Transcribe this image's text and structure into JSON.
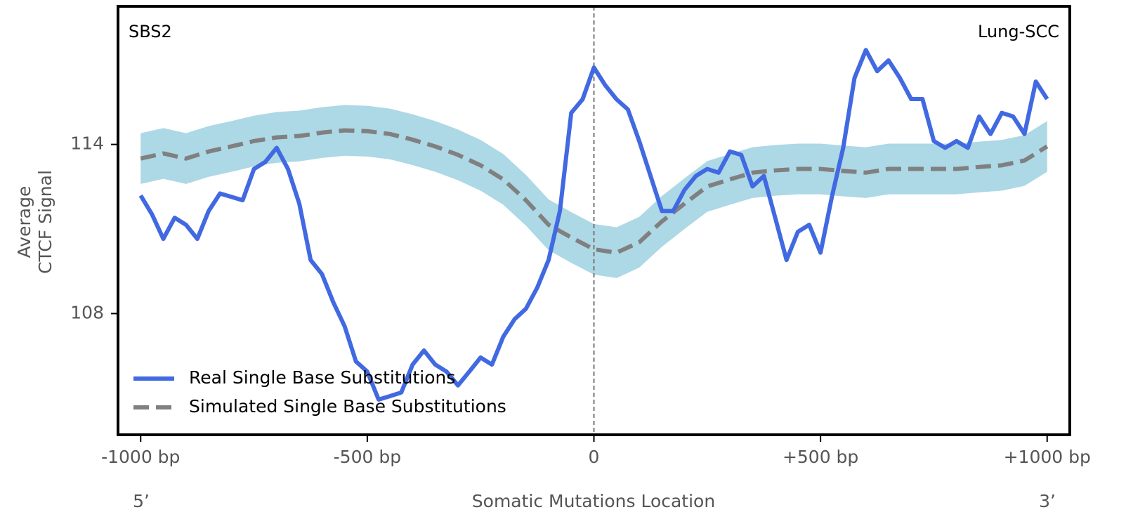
{
  "chart_data": {
    "type": "line",
    "annotations": [
      "SBS2",
      "Lung-SCC"
    ],
    "xlabel": "Somatic Mutations Location",
    "x_end_labels": [
      "5’",
      "3’"
    ],
    "ylabel": [
      "Average",
      "CTCF Signal"
    ],
    "xlim": [
      -1050,
      1050
    ],
    "ylim": [
      103.7,
      118.9
    ],
    "xticks": [
      {
        "value": -1000,
        "label": "-1000 bp"
      },
      {
        "value": -500,
        "label": "-500 bp"
      },
      0,
      {
        "value": 500,
        "label": "+500 bp"
      },
      {
        "value": 1000,
        "label": "+1000 bp"
      }
    ],
    "yticks": [
      108,
      114
    ],
    "vline": 0,
    "legend": "lower left",
    "band": {
      "color": "#add8e6",
      "x": [
        -1000,
        -950,
        -900,
        -850,
        -800,
        -750,
        -700,
        -650,
        -600,
        -550,
        -500,
        -450,
        -400,
        -350,
        -300,
        -250,
        -200,
        -150,
        -100,
        -50,
        0,
        50,
        100,
        150,
        200,
        250,
        300,
        350,
        400,
        450,
        500,
        550,
        600,
        650,
        700,
        750,
        800,
        850,
        900,
        950,
        1000
      ],
      "upper": [
        114.4,
        114.58,
        114.4,
        114.65,
        114.83,
        115.02,
        115.15,
        115.2,
        115.32,
        115.4,
        115.37,
        115.27,
        115.07,
        114.83,
        114.53,
        114.16,
        113.66,
        112.92,
        112.05,
        111.6,
        111.18,
        111.06,
        111.43,
        112.17,
        112.8,
        113.41,
        113.66,
        113.9,
        113.98,
        114.03,
        114.03,
        113.96,
        113.9,
        114.03,
        114.03,
        114.03,
        114.03,
        114.1,
        114.16,
        114.33,
        114.83
      ],
      "lower": [
        112.6,
        112.78,
        112.6,
        112.85,
        113.03,
        113.22,
        113.35,
        113.4,
        113.52,
        113.6,
        113.57,
        113.47,
        113.27,
        113.03,
        112.73,
        112.36,
        111.86,
        111.12,
        110.25,
        109.8,
        109.38,
        109.26,
        109.63,
        110.37,
        111.0,
        111.61,
        111.86,
        112.1,
        112.18,
        112.23,
        112.23,
        112.16,
        112.1,
        112.23,
        112.23,
        112.23,
        112.23,
        112.3,
        112.36,
        112.53,
        113.03
      ]
    },
    "series": [
      {
        "name": "Real Single Base Substitutions",
        "color": "#4169e1",
        "dash": false,
        "x": [
          -1000,
          -975,
          -950,
          -925,
          -900,
          -875,
          -850,
          -825,
          -800,
          -775,
          -750,
          -725,
          -700,
          -675,
          -650,
          -625,
          -600,
          -575,
          -550,
          -525,
          -500,
          -475,
          -450,
          -425,
          -400,
          -375,
          -350,
          -325,
          -300,
          -275,
          -250,
          -225,
          -200,
          -175,
          -150,
          -125,
          -100,
          -75,
          -50,
          -25,
          0,
          25,
          50,
          75,
          100,
          125,
          150,
          175,
          200,
          225,
          250,
          275,
          300,
          325,
          350,
          375,
          400,
          425,
          450,
          475,
          500,
          525,
          550,
          575,
          600,
          625,
          650,
          675,
          700,
          725,
          750,
          775,
          800,
          825,
          850,
          875,
          900,
          925,
          950,
          975,
          1000
        ],
        "values": [
          112.19,
          111.52,
          110.65,
          111.4,
          111.15,
          110.65,
          111.64,
          112.26,
          112.14,
          112.02,
          113.13,
          113.38,
          113.88,
          113.13,
          111.9,
          109.9,
          109.4,
          108.4,
          107.55,
          106.3,
          105.94,
          104.95,
          105.07,
          105.2,
          106.19,
          106.69,
          106.19,
          105.94,
          105.45,
          105.94,
          106.44,
          106.19,
          107.18,
          107.8,
          108.17,
          108.92,
          109.9,
          111.64,
          115.12,
          115.6,
          116.73,
          116.1,
          115.6,
          115.24,
          114.12,
          112.88,
          111.64,
          111.64,
          112.39,
          112.88,
          113.13,
          113.0,
          113.75,
          113.63,
          112.51,
          112.88,
          111.4,
          109.9,
          110.9,
          111.15,
          110.16,
          112.14,
          113.88,
          116.36,
          117.35,
          116.6,
          116.98,
          116.36,
          115.61,
          115.61,
          114.12,
          113.88,
          114.12,
          113.88,
          114.99,
          114.37,
          115.12,
          114.99,
          114.37,
          116.23,
          115.61
        ]
      },
      {
        "name": "Simulated Single Base Substitutions",
        "color": "#808080",
        "dash": true,
        "x": [
          -1000,
          -950,
          -900,
          -850,
          -800,
          -750,
          -700,
          -650,
          -600,
          -550,
          -500,
          -450,
          -400,
          -350,
          -300,
          -250,
          -200,
          -150,
          -100,
          -50,
          0,
          50,
          100,
          150,
          200,
          250,
          300,
          350,
          400,
          450,
          500,
          550,
          600,
          650,
          700,
          750,
          800,
          850,
          900,
          950,
          1000
        ],
        "values": [
          113.5,
          113.68,
          113.5,
          113.75,
          113.93,
          114.12,
          114.25,
          114.3,
          114.42,
          114.5,
          114.47,
          114.37,
          114.17,
          113.93,
          113.63,
          113.26,
          112.76,
          112.02,
          111.15,
          110.7,
          110.28,
          110.16,
          110.53,
          111.27,
          111.9,
          112.51,
          112.76,
          113.0,
          113.08,
          113.13,
          113.13,
          113.06,
          113.0,
          113.13,
          113.13,
          113.13,
          113.13,
          113.2,
          113.26,
          113.43,
          113.93
        ]
      }
    ]
  }
}
